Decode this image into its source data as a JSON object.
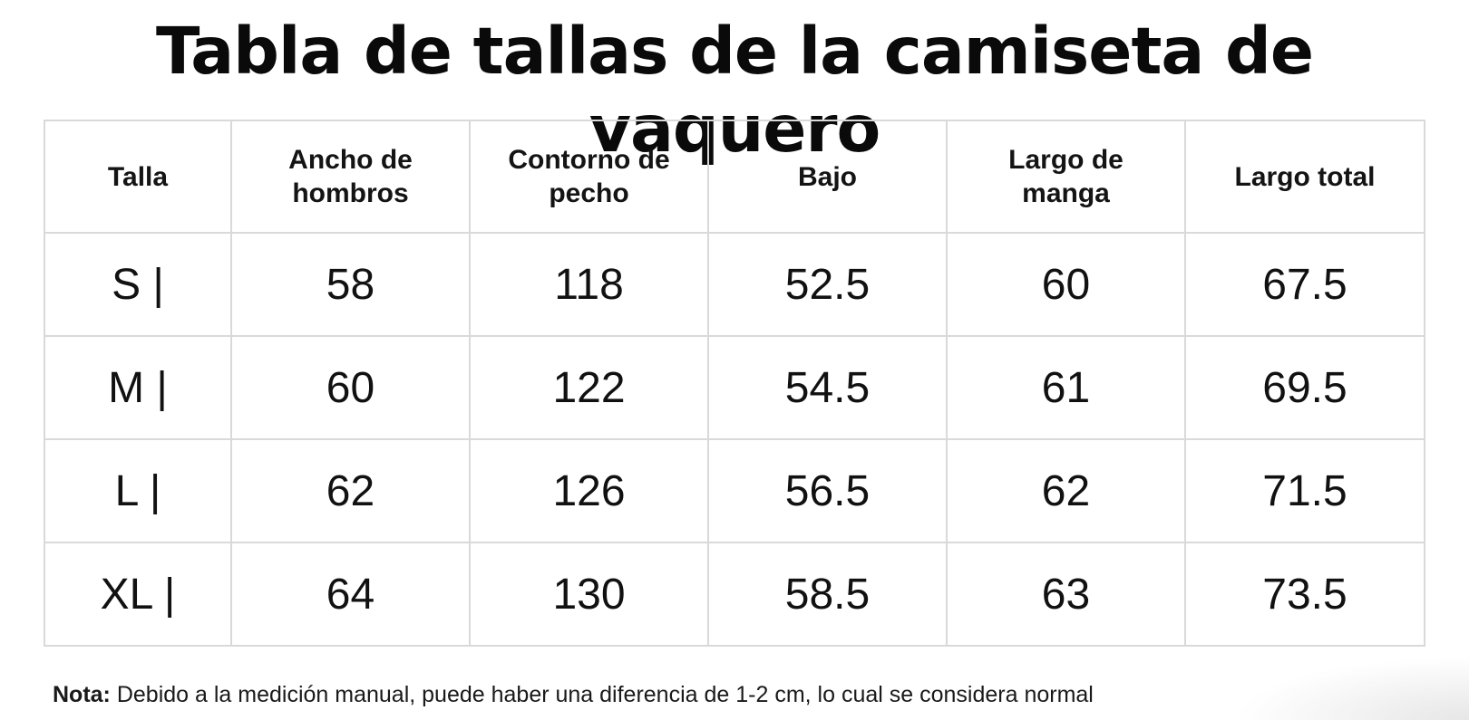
{
  "title": "Tabla de tallas de la camiseta de vaquero",
  "table": {
    "headers": [
      "Talla",
      "Ancho de hombros",
      "Contorno de pecho",
      "Bajo",
      "Largo de manga",
      "Largo total"
    ],
    "rows": [
      [
        "S |",
        "58",
        "118",
        "52.5",
        "60",
        "67.5"
      ],
      [
        "M |",
        "60",
        "122",
        "54.5",
        "61",
        "69.5"
      ],
      [
        "L |",
        "62",
        "126",
        "56.5",
        "62",
        "71.5"
      ],
      [
        "XL |",
        "64",
        "130",
        "58.5",
        "63",
        "73.5"
      ]
    ]
  },
  "note": {
    "label": "Nota:",
    "text": " Debido a la medición manual, puede haber una diferencia de 1-2 cm, lo cual se considera normal"
  }
}
